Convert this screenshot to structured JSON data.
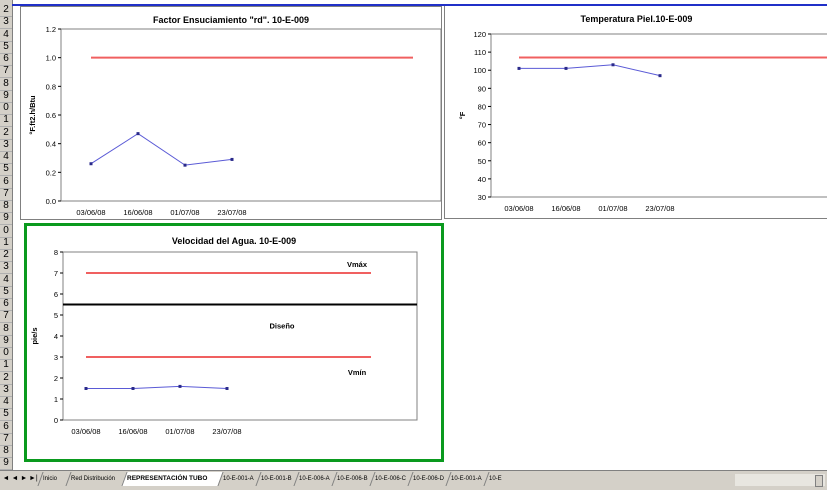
{
  "row_numbers": [
    "2",
    "3",
    "4",
    "5",
    "6",
    "7",
    "8",
    "9",
    "0",
    "1",
    "2",
    "3",
    "4",
    "5",
    "6",
    "7",
    "8",
    "9",
    "0",
    "1",
    "2",
    "3",
    "4",
    "5",
    "6",
    "7",
    "8",
    "9",
    "0",
    "1",
    "2",
    "3",
    "4",
    "5",
    "6",
    "7",
    "8",
    "9"
  ],
  "charts": [
    {
      "title": "Factor Ensuciamiento \"rd\". 10-E-009",
      "ylabel": "°F.ft2.h/Btu",
      "yticks": [
        "0.0",
        "0.2",
        "0.4",
        "0.6",
        "0.8",
        "1.0",
        "1.2"
      ],
      "xticks": [
        "03/06/08",
        "16/06/08",
        "01/07/08",
        "23/07/08"
      ],
      "border_color": "#808080",
      "annotations": []
    },
    {
      "title": "Temperatura Piel.10-E-009",
      "ylabel": "°F",
      "yticks": [
        "30",
        "40",
        "50",
        "60",
        "70",
        "80",
        "90",
        "100",
        "110",
        "120"
      ],
      "xticks": [
        "03/06/08",
        "16/06/08",
        "01/07/08",
        "23/07/08"
      ],
      "border_color": "#808080",
      "annotations": []
    },
    {
      "title": "Velocidad del Agua. 10-E-009",
      "ylabel": "pie/s",
      "yticks": [
        "0",
        "1",
        "2",
        "3",
        "4",
        "5",
        "6",
        "7",
        "8"
      ],
      "xticks": [
        "03/06/08",
        "16/06/08",
        "01/07/08",
        "23/07/08"
      ],
      "border_color": "#0a9a1e",
      "annotations": [
        "Vmáx",
        "Diseño",
        "Vmín"
      ]
    }
  ],
  "chart_data": [
    {
      "type": "line",
      "title": "Factor Ensuciamiento \"rd\". 10-E-009",
      "xlabel": "",
      "ylabel": "°F.ft2.h/Btu",
      "x": [
        "03/06/08",
        "16/06/08",
        "01/07/08",
        "23/07/08"
      ],
      "ylim": [
        0,
        1.2
      ],
      "series": [
        {
          "values": [
            0.26,
            0.47,
            0.25,
            0.29
          ],
          "color": "#5a5ad6"
        }
      ],
      "reference_lines": [
        {
          "value": 1.0,
          "color": "#f06060"
        }
      ],
      "grid": false
    },
    {
      "type": "line",
      "title": "Temperatura Piel.10-E-009",
      "xlabel": "",
      "ylabel": "°F",
      "x": [
        "03/06/08",
        "16/06/08",
        "01/07/08",
        "23/07/08"
      ],
      "ylim": [
        30,
        120
      ],
      "series": [
        {
          "values": [
            101,
            101,
            103,
            97
          ],
          "color": "#5a5ad6"
        }
      ],
      "reference_lines": [
        {
          "value": 107,
          "color": "#f06060"
        }
      ],
      "grid": false
    },
    {
      "type": "line",
      "title": "Velocidad del Agua. 10-E-009",
      "xlabel": "",
      "ylabel": "pie/s",
      "x": [
        "03/06/08",
        "16/06/08",
        "01/07/08",
        "23/07/08"
      ],
      "ylim": [
        0,
        8
      ],
      "series": [
        {
          "values": [
            1.5,
            1.5,
            1.6,
            1.5
          ],
          "color": "#5a5ad6"
        }
      ],
      "reference_lines": [
        {
          "value": 7.0,
          "color": "#f06060",
          "label": "Vmáx"
        },
        {
          "value": 5.5,
          "color": "#000000",
          "label": "Diseño"
        },
        {
          "value": 3.0,
          "color": "#f06060",
          "label": "Vmín"
        }
      ],
      "grid": false
    }
  ],
  "tabs": [
    {
      "label": "Inicio",
      "active": false
    },
    {
      "label": "Red Distribución",
      "active": false
    },
    {
      "label": "REPRESENTACIÓN TUBO",
      "active": true
    },
    {
      "label": "10-E-001-A",
      "active": false
    },
    {
      "label": "10-E-001-B",
      "active": false
    },
    {
      "label": "10-E-006-A",
      "active": false
    },
    {
      "label": "10-E-006-B",
      "active": false
    },
    {
      "label": "10-E-006-C",
      "active": false
    },
    {
      "label": "10-E-006-D",
      "active": false
    },
    {
      "label": "10-E-001-A",
      "active": false
    },
    {
      "label": "10-E",
      "active": false
    }
  ],
  "nav_buttons": [
    "◄",
    "◄",
    "►",
    "►|"
  ],
  "colors": {
    "selection": "#0a9a1e",
    "chart2_frame": "#2030c8",
    "ref_line": "#f06060",
    "series": "#5a5ad6"
  }
}
